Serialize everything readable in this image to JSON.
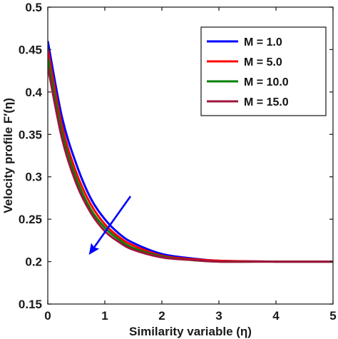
{
  "chart_data": {
    "type": "line",
    "title": "",
    "xlabel": "Similarity variable (η)",
    "ylabel": "Velocity profile F′(η)",
    "xlim": [
      0,
      5
    ],
    "ylim": [
      0.15,
      0.5
    ],
    "xticks": [
      "0",
      "1",
      "2",
      "3",
      "4",
      "5"
    ],
    "yticks": [
      "0.15",
      "0.2",
      "0.25",
      "0.3",
      "0.35",
      "0.4",
      "0.45",
      "0.5"
    ],
    "grid": false,
    "legend_position": "top-right",
    "asymptote": 0.2,
    "series": [
      {
        "name": "M = 1.0",
        "color": "#0000ff",
        "x": [
          0,
          0.25,
          0.5,
          0.75,
          1.0,
          1.25,
          1.5,
          2.0,
          2.5,
          3.0,
          4.0,
          5.0
        ],
        "y": [
          0.46,
          0.37,
          0.315,
          0.275,
          0.25,
          0.233,
          0.222,
          0.209,
          0.204,
          0.201,
          0.2,
          0.2
        ]
      },
      {
        "name": "M = 5.0",
        "color": "#ff0000",
        "x": [
          0,
          0.25,
          0.5,
          0.75,
          1.0,
          1.25,
          1.5,
          2.0,
          2.5,
          3.0,
          4.0,
          5.0
        ],
        "y": [
          0.45,
          0.36,
          0.305,
          0.268,
          0.244,
          0.229,
          0.219,
          0.207,
          0.203,
          0.201,
          0.2,
          0.2
        ]
      },
      {
        "name": "M = 10.0",
        "color": "#008000",
        "x": [
          0,
          0.25,
          0.5,
          0.75,
          1.0,
          1.25,
          1.5,
          2.0,
          2.5,
          3.0,
          4.0,
          5.0
        ],
        "y": [
          0.44,
          0.352,
          0.298,
          0.262,
          0.24,
          0.226,
          0.216,
          0.206,
          0.202,
          0.2,
          0.2,
          0.2
        ]
      },
      {
        "name": "M = 15.0",
        "color": "#a0143c",
        "x": [
          0,
          0.25,
          0.5,
          0.75,
          1.0,
          1.25,
          1.5,
          2.0,
          2.5,
          3.0,
          4.0,
          5.0
        ],
        "y": [
          0.43,
          0.345,
          0.292,
          0.258,
          0.236,
          0.223,
          0.214,
          0.205,
          0.202,
          0.2,
          0.2,
          0.2
        ]
      }
    ],
    "annotation": {
      "type": "arrow",
      "color": "#0000ff",
      "from": [
        1.45,
        0.277
      ],
      "to": [
        0.72,
        0.208
      ]
    }
  }
}
